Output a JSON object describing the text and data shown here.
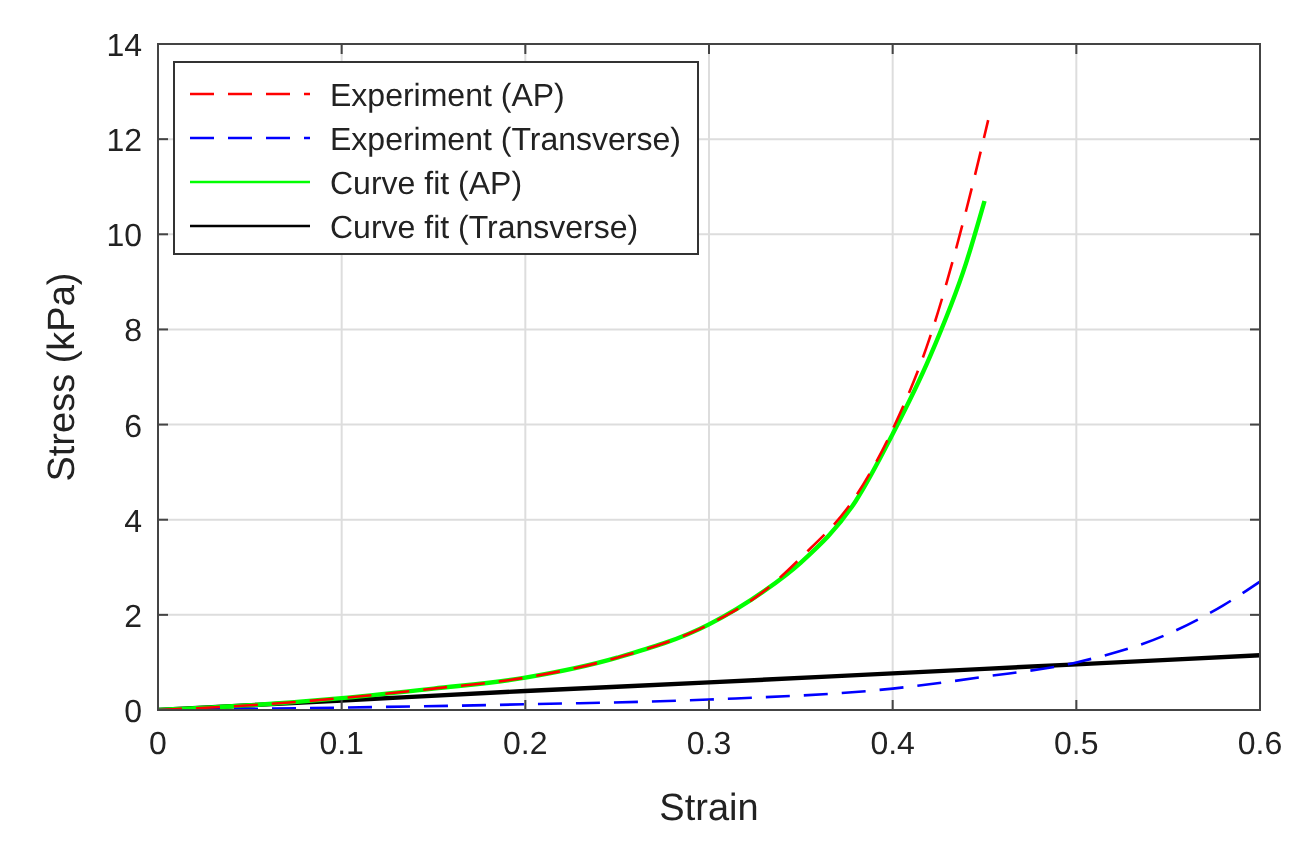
{
  "chart_data": {
    "type": "line",
    "xlabel": "Strain",
    "ylabel": "Stress (kPa)",
    "xlim": [
      0,
      0.6
    ],
    "ylim": [
      0,
      14
    ],
    "xticks": [
      0,
      0.1,
      0.2,
      0.3,
      0.4,
      0.5,
      0.6
    ],
    "yticks": [
      0,
      2,
      4,
      6,
      8,
      10,
      12,
      14
    ],
    "grid": true,
    "legend": "top left",
    "series": [
      {
        "name": "Experiment (AP)",
        "color": "#ff0000",
        "line_style": "dashed",
        "x": [
          0,
          0.05,
          0.1,
          0.15,
          0.2,
          0.25,
          0.3,
          0.33,
          0.35,
          0.38,
          0.4,
          0.42,
          0.44,
          0.452
        ],
        "values": [
          0,
          0.1,
          0.25,
          0.45,
          0.68,
          1.1,
          1.8,
          2.5,
          3.2,
          4.5,
          5.9,
          7.8,
          10.5,
          12.4
        ]
      },
      {
        "name": "Experiment (Transverse)",
        "color": "#0000ff",
        "line_style": "dashed",
        "x": [
          0,
          0.1,
          0.2,
          0.3,
          0.4,
          0.45,
          0.5,
          0.55,
          0.58,
          0.6
        ],
        "values": [
          0,
          0.05,
          0.12,
          0.22,
          0.45,
          0.7,
          1.0,
          1.6,
          2.2,
          2.7
        ]
      },
      {
        "name": "Curve fit (AP)",
        "color": "#00ff00",
        "line_style": "solid",
        "x": [
          0,
          0.05,
          0.1,
          0.15,
          0.2,
          0.25,
          0.3,
          0.33,
          0.35,
          0.38,
          0.4,
          0.42,
          0.44,
          0.45
        ],
        "values": [
          0,
          0.1,
          0.25,
          0.45,
          0.68,
          1.1,
          1.8,
          2.5,
          3.1,
          4.4,
          5.8,
          7.4,
          9.4,
          10.7
        ]
      },
      {
        "name": "Curve fit (Transverse)",
        "color": "#000000",
        "line_style": "solid",
        "x": [
          0,
          0.1,
          0.2,
          0.3,
          0.4,
          0.5,
          0.6
        ],
        "values": [
          0,
          0.2,
          0.4,
          0.58,
          0.77,
          0.96,
          1.15
        ]
      }
    ]
  }
}
